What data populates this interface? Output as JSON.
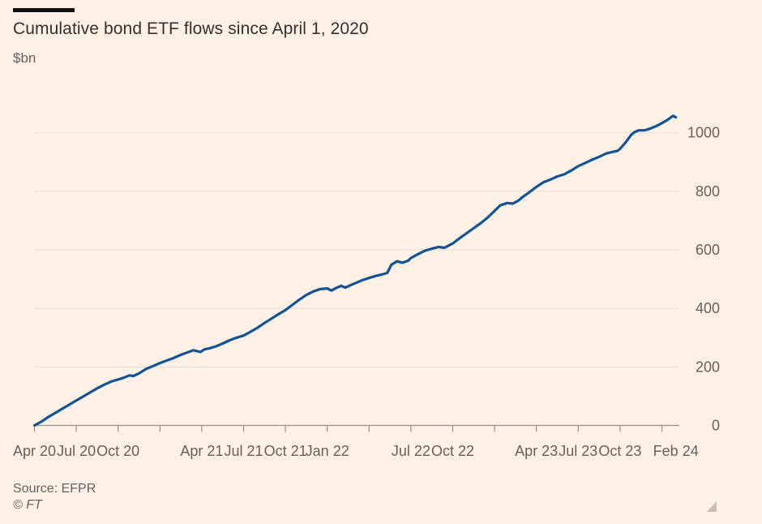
{
  "header": {
    "title": "Cumulative bond ETF flows since April 1, 2020",
    "unit": "$bn"
  },
  "footer": {
    "source": "Source: EFPR",
    "credit": "© FT"
  },
  "chart_data": {
    "type": "line",
    "title": "Cumulative bond ETF flows since April 1, 2020",
    "ylabel": "$bn",
    "xlabel": "",
    "x_unit": "months since Apr 1 2020",
    "xlim": [
      0,
      46
    ],
    "ylim": [
      0,
      1100
    ],
    "grid": true,
    "legend_position": "none",
    "yticks": [
      {
        "v": 0,
        "label": "0"
      },
      {
        "v": 200,
        "label": "200"
      },
      {
        "v": 400,
        "label": "400"
      },
      {
        "v": 600,
        "label": "600"
      },
      {
        "v": 800,
        "label": "800"
      },
      {
        "v": 1000,
        "label": "1000"
      }
    ],
    "xticks": [
      {
        "m": 0,
        "label": "Apr 20",
        "tick": true
      },
      {
        "m": 3,
        "label": "Jul 20",
        "tick": true
      },
      {
        "m": 6,
        "label": "Oct 20",
        "tick": true
      },
      {
        "m": 9,
        "label": "",
        "tick": true
      },
      {
        "m": 12,
        "label": "Apr 21",
        "tick": true
      },
      {
        "m": 15,
        "label": "Jul 21",
        "tick": true
      },
      {
        "m": 18,
        "label": "Oct 21",
        "tick": true
      },
      {
        "m": 21,
        "label": "Jan 22",
        "tick": true
      },
      {
        "m": 24,
        "label": "",
        "tick": true
      },
      {
        "m": 27,
        "label": "Jul 22",
        "tick": true
      },
      {
        "m": 30,
        "label": "Oct 22",
        "tick": true
      },
      {
        "m": 33,
        "label": "",
        "tick": true
      },
      {
        "m": 36,
        "label": "Apr 23",
        "tick": true
      },
      {
        "m": 39,
        "label": "Jul 23",
        "tick": true
      },
      {
        "m": 42,
        "label": "Oct 23",
        "tick": true
      },
      {
        "m": 45,
        "label": "",
        "tick": true
      },
      {
        "m": 46,
        "label": "Feb 24",
        "tick": false
      }
    ],
    "series": [
      {
        "name": "Cumulative bond ETF flows ($bn)",
        "color": "#0f5499",
        "points": [
          [
            0,
            0
          ],
          [
            0.5,
            13
          ],
          [
            1,
            29
          ],
          [
            1.5,
            43
          ],
          [
            2,
            57
          ],
          [
            2.5,
            71
          ],
          [
            3,
            85
          ],
          [
            3.5,
            99
          ],
          [
            4,
            113
          ],
          [
            4.5,
            127
          ],
          [
            5,
            139
          ],
          [
            5.5,
            150
          ],
          [
            6,
            157
          ],
          [
            6.4,
            163
          ],
          [
            6.8,
            171
          ],
          [
            7.1,
            169
          ],
          [
            7.5,
            178
          ],
          [
            8,
            193
          ],
          [
            8.5,
            203
          ],
          [
            9,
            213
          ],
          [
            9.5,
            222
          ],
          [
            10,
            231
          ],
          [
            10.5,
            241
          ],
          [
            11,
            250
          ],
          [
            11.4,
            257
          ],
          [
            11.9,
            251
          ],
          [
            12.2,
            260
          ],
          [
            12.6,
            264
          ],
          [
            13,
            270
          ],
          [
            13.5,
            280
          ],
          [
            14,
            291
          ],
          [
            14.5,
            300
          ],
          [
            15,
            307
          ],
          [
            15.5,
            320
          ],
          [
            16,
            334
          ],
          [
            16.5,
            350
          ],
          [
            17,
            365
          ],
          [
            17.5,
            380
          ],
          [
            18,
            394
          ],
          [
            18.5,
            412
          ],
          [
            19,
            430
          ],
          [
            19.5,
            446
          ],
          [
            20,
            458
          ],
          [
            20.5,
            466
          ],
          [
            21,
            468
          ],
          [
            21.3,
            461
          ],
          [
            21.6,
            469
          ],
          [
            22,
            477
          ],
          [
            22.3,
            471
          ],
          [
            22.7,
            480
          ],
          [
            23,
            486
          ],
          [
            23.5,
            496
          ],
          [
            24,
            504
          ],
          [
            24.5,
            511
          ],
          [
            25,
            517
          ],
          [
            25.3,
            521
          ],
          [
            25.6,
            549
          ],
          [
            26,
            561
          ],
          [
            26.4,
            556
          ],
          [
            26.8,
            563
          ],
          [
            27,
            572
          ],
          [
            27.5,
            585
          ],
          [
            28,
            597
          ],
          [
            28.5,
            604
          ],
          [
            29,
            610
          ],
          [
            29.4,
            607
          ],
          [
            30,
            622
          ],
          [
            30.5,
            640
          ],
          [
            31,
            657
          ],
          [
            31.5,
            674
          ],
          [
            32,
            691
          ],
          [
            32.5,
            710
          ],
          [
            33,
            733
          ],
          [
            33.4,
            752
          ],
          [
            33.9,
            760
          ],
          [
            34.3,
            758
          ],
          [
            34.7,
            768
          ],
          [
            35,
            780
          ],
          [
            35.5,
            797
          ],
          [
            36,
            815
          ],
          [
            36.5,
            831
          ],
          [
            37,
            840
          ],
          [
            37.5,
            851
          ],
          [
            38,
            858
          ],
          [
            38.5,
            871
          ],
          [
            39,
            886
          ],
          [
            39.5,
            897
          ],
          [
            40,
            908
          ],
          [
            40.5,
            918
          ],
          [
            41,
            929
          ],
          [
            41.4,
            934
          ],
          [
            41.8,
            938
          ],
          [
            42,
            945
          ],
          [
            42.4,
            967
          ],
          [
            42.8,
            993
          ],
          [
            43,
            1001
          ],
          [
            43.3,
            1008
          ],
          [
            43.8,
            1009
          ],
          [
            44.2,
            1015
          ],
          [
            44.6,
            1023
          ],
          [
            45,
            1033
          ],
          [
            45.3,
            1041
          ],
          [
            45.6,
            1051
          ],
          [
            45.8,
            1058
          ],
          [
            46,
            1053
          ]
        ]
      }
    ],
    "colors": {
      "background": "#fff1e5",
      "gridline": "#e8dcd1",
      "axis": "#9a8f84",
      "tick": "#9a8f84",
      "axis_text": "#66605c",
      "title_text": "#33302e",
      "line": "#0f5499"
    }
  }
}
